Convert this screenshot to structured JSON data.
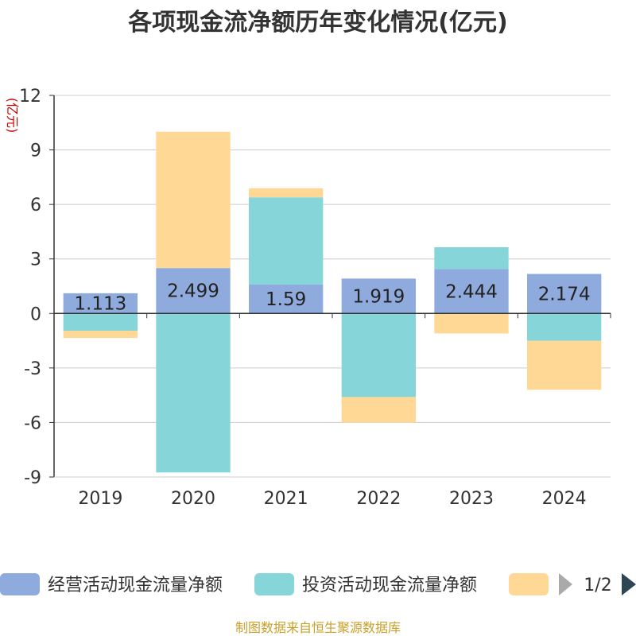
{
  "chart_data": {
    "type": "bar",
    "stacked": true,
    "title": "各项现金流净额历年变化情况(亿元)",
    "unit_label": "(亿元)",
    "categories": [
      "2019",
      "2020",
      "2021",
      "2022",
      "2023",
      "2024"
    ],
    "ylim": [
      -9,
      12
    ],
    "yticks": [
      12,
      9,
      6,
      3,
      0,
      -3,
      -6,
      -9
    ],
    "grid": true,
    "series": [
      {
        "name": "经营活动现金流量净额",
        "color": "#8faadc",
        "values": [
          1.113,
          2.499,
          1.59,
          1.919,
          2.444,
          2.174
        ],
        "labels": [
          "1.113",
          "2.499",
          "1.59",
          "1.919",
          "2.444",
          "2.174"
        ]
      },
      {
        "name": "投资活动现金流量净额",
        "color": "#86d5d8",
        "values": [
          -0.95,
          -8.75,
          4.8,
          -4.6,
          1.2,
          -1.5
        ]
      },
      {
        "name": "",
        "color": "#ffd896",
        "values": [
          -0.4,
          7.5,
          0.5,
          -1.4,
          -1.1,
          -2.7
        ]
      }
    ],
    "legend": {
      "page": "1/2",
      "position": "bottom"
    },
    "source": "制图数据来自恒生聚源数据库"
  }
}
